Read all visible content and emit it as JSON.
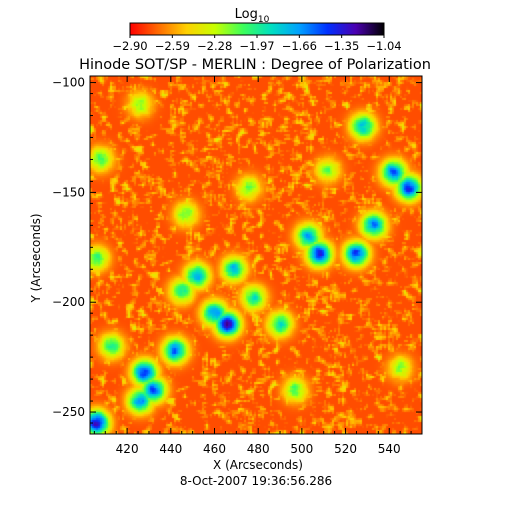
{
  "chart_data": {
    "type": "heatmap",
    "title": "Hinode SOT/SP - MERLIN : Degree of Polarization",
    "xlabel": "X (Arcseconds)",
    "ylabel": "Y (Arcseconds)",
    "footer": "8-Oct-2007 19:36:56.286",
    "xlim": [
      403,
      555
    ],
    "ylim": [
      -260,
      -97
    ],
    "x_ticks": [
      420,
      440,
      460,
      480,
      500,
      520,
      540
    ],
    "y_ticks": [
      -100,
      -150,
      -200,
      -250
    ],
    "x_tick_labels": [
      "420",
      "440",
      "460",
      "480",
      "500",
      "520",
      "540"
    ],
    "y_tick_labels": [
      "−100",
      "−150",
      "−200",
      "−250"
    ],
    "colorbar": {
      "label_base": "Log",
      "label_sub": "10",
      "range": [
        -2.9,
        -1.04
      ],
      "ticks": [
        -2.9,
        -2.59,
        -2.28,
        -1.97,
        -1.66,
        -1.35,
        -1.04
      ],
      "tick_labels": [
        "−2.90",
        "−2.59",
        "−2.28",
        "−1.97",
        "−1.66",
        "−1.35",
        "−1.04"
      ],
      "stops": [
        "#ff0000",
        "#ff6a00",
        "#ffd000",
        "#c8ff00",
        "#3dff5a",
        "#00e0c0",
        "#00a0ff",
        "#0030ff",
        "#4b00b0",
        "#000000"
      ]
    },
    "field_base_level": -2.75,
    "high_polarization_regions": [
      {
        "x": 466,
        "y": -210,
        "level": -1.25
      },
      {
        "x": 460,
        "y": -205,
        "level": -1.6
      },
      {
        "x": 442,
        "y": -222,
        "level": -1.55
      },
      {
        "x": 428,
        "y": -232,
        "level": -1.4
      },
      {
        "x": 432,
        "y": -240,
        "level": -1.5
      },
      {
        "x": 426,
        "y": -245,
        "level": -1.65
      },
      {
        "x": 406,
        "y": -255,
        "level": -1.3
      },
      {
        "x": 508,
        "y": -178,
        "level": -1.4
      },
      {
        "x": 503,
        "y": -170,
        "level": -1.7
      },
      {
        "x": 525,
        "y": -178,
        "level": -1.45
      },
      {
        "x": 533,
        "y": -165,
        "level": -1.6
      },
      {
        "x": 549,
        "y": -148,
        "level": -1.4
      },
      {
        "x": 542,
        "y": -141,
        "level": -1.55
      },
      {
        "x": 528,
        "y": -120,
        "level": -1.7
      },
      {
        "x": 469,
        "y": -185,
        "level": -1.8
      },
      {
        "x": 452,
        "y": -188,
        "level": -1.7
      },
      {
        "x": 445,
        "y": -195,
        "level": -1.9
      },
      {
        "x": 478,
        "y": -198,
        "level": -1.9
      },
      {
        "x": 490,
        "y": -210,
        "level": -1.85
      },
      {
        "x": 413,
        "y": -220,
        "level": -1.95
      },
      {
        "x": 406,
        "y": -180,
        "level": -2.0
      },
      {
        "x": 408,
        "y": -135,
        "level": -2.05
      },
      {
        "x": 447,
        "y": -160,
        "level": -2.1
      },
      {
        "x": 476,
        "y": -148,
        "level": -2.15
      },
      {
        "x": 512,
        "y": -140,
        "level": -2.15
      },
      {
        "x": 497,
        "y": -240,
        "level": -2.1
      },
      {
        "x": 545,
        "y": -230,
        "level": -2.2
      },
      {
        "x": 426,
        "y": -110,
        "level": -2.2
      }
    ]
  }
}
